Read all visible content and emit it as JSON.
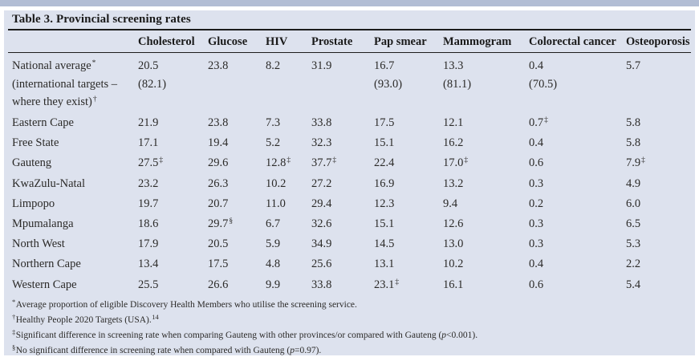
{
  "colors": {
    "top_bar": "#b2bdd4",
    "card_bg": "#dde2ee",
    "rule": "#1c1c1c",
    "text": "#2b2a28"
  },
  "table": {
    "title": "Table 3. Provincial screening rates",
    "columns": [
      "Cholesterol",
      "Glucose",
      "HIV",
      "Prostate",
      "Pap smear",
      "Mammogram",
      "Colorectal cancer",
      "Osteoporosis"
    ],
    "rows": [
      {
        "label": [
          {
            "t": "National average",
            "sup": "*"
          },
          {
            "t": "(international targets –",
            "sup": ""
          },
          {
            "t": "where they exist)",
            "sup": "†"
          }
        ],
        "cells": [
          {
            "v": "20.5",
            "sup": "",
            "v2": "(82.1)"
          },
          {
            "v": "23.8",
            "sup": "",
            "v2": ""
          },
          {
            "v": "8.2",
            "sup": "",
            "v2": ""
          },
          {
            "v": "31.9",
            "sup": "",
            "v2": ""
          },
          {
            "v": "16.7",
            "sup": "",
            "v2": "(93.0)"
          },
          {
            "v": "13.3",
            "sup": "",
            "v2": "(81.1)"
          },
          {
            "v": "0.4",
            "sup": "",
            "v2": "(70.5)"
          },
          {
            "v": "5.7",
            "sup": "",
            "v2": ""
          }
        ]
      },
      {
        "label": [
          {
            "t": "Eastern Cape",
            "sup": ""
          }
        ],
        "cells": [
          {
            "v": "21.9",
            "sup": "",
            "v2": ""
          },
          {
            "v": "23.8",
            "sup": "",
            "v2": ""
          },
          {
            "v": "7.3",
            "sup": "",
            "v2": ""
          },
          {
            "v": "33.8",
            "sup": "",
            "v2": ""
          },
          {
            "v": "17.5",
            "sup": "",
            "v2": ""
          },
          {
            "v": "12.1",
            "sup": "",
            "v2": ""
          },
          {
            "v": "0.7",
            "sup": "‡",
            "v2": ""
          },
          {
            "v": "5.8",
            "sup": "",
            "v2": ""
          }
        ]
      },
      {
        "label": [
          {
            "t": "Free State",
            "sup": ""
          }
        ],
        "cells": [
          {
            "v": "17.1",
            "sup": "",
            "v2": ""
          },
          {
            "v": "19.4",
            "sup": "",
            "v2": ""
          },
          {
            "v": "5.2",
            "sup": "",
            "v2": ""
          },
          {
            "v": "32.3",
            "sup": "",
            "v2": ""
          },
          {
            "v": "15.1",
            "sup": "",
            "v2": ""
          },
          {
            "v": "16.2",
            "sup": "",
            "v2": ""
          },
          {
            "v": "0.4",
            "sup": "",
            "v2": ""
          },
          {
            "v": "5.8",
            "sup": "",
            "v2": ""
          }
        ]
      },
      {
        "label": [
          {
            "t": "Gauteng",
            "sup": ""
          }
        ],
        "cells": [
          {
            "v": "27.5",
            "sup": "‡",
            "v2": ""
          },
          {
            "v": "29.6",
            "sup": "",
            "v2": ""
          },
          {
            "v": "12.8",
            "sup": "‡",
            "v2": ""
          },
          {
            "v": "37.7",
            "sup": "‡",
            "v2": ""
          },
          {
            "v": "22.4",
            "sup": "",
            "v2": ""
          },
          {
            "v": "17.0",
            "sup": "‡",
            "v2": ""
          },
          {
            "v": "0.6",
            "sup": "",
            "v2": ""
          },
          {
            "v": "7.9",
            "sup": "‡",
            "v2": ""
          }
        ]
      },
      {
        "label": [
          {
            "t": "KwaZulu-Natal",
            "sup": ""
          }
        ],
        "cells": [
          {
            "v": "23.2",
            "sup": "",
            "v2": ""
          },
          {
            "v": "26.3",
            "sup": "",
            "v2": ""
          },
          {
            "v": "10.2",
            "sup": "",
            "v2": ""
          },
          {
            "v": "27.2",
            "sup": "",
            "v2": ""
          },
          {
            "v": "16.9",
            "sup": "",
            "v2": ""
          },
          {
            "v": "13.2",
            "sup": "",
            "v2": ""
          },
          {
            "v": "0.3",
            "sup": "",
            "v2": ""
          },
          {
            "v": "4.9",
            "sup": "",
            "v2": ""
          }
        ]
      },
      {
        "label": [
          {
            "t": "Limpopo",
            "sup": ""
          }
        ],
        "cells": [
          {
            "v": "19.7",
            "sup": "",
            "v2": ""
          },
          {
            "v": "20.7",
            "sup": "",
            "v2": ""
          },
          {
            "v": "11.0",
            "sup": "",
            "v2": ""
          },
          {
            "v": "29.4",
            "sup": "",
            "v2": ""
          },
          {
            "v": "12.3",
            "sup": "",
            "v2": ""
          },
          {
            "v": "9.4",
            "sup": "",
            "v2": ""
          },
          {
            "v": "0.2",
            "sup": "",
            "v2": ""
          },
          {
            "v": "6.0",
            "sup": "",
            "v2": ""
          }
        ]
      },
      {
        "label": [
          {
            "t": "Mpumalanga",
            "sup": ""
          }
        ],
        "cells": [
          {
            "v": "18.6",
            "sup": "",
            "v2": ""
          },
          {
            "v": "29.7",
            "sup": "§",
            "v2": ""
          },
          {
            "v": "6.7",
            "sup": "",
            "v2": ""
          },
          {
            "v": "32.6",
            "sup": "",
            "v2": ""
          },
          {
            "v": "15.1",
            "sup": "",
            "v2": ""
          },
          {
            "v": "12.6",
            "sup": "",
            "v2": ""
          },
          {
            "v": "0.3",
            "sup": "",
            "v2": ""
          },
          {
            "v": "6.5",
            "sup": "",
            "v2": ""
          }
        ]
      },
      {
        "label": [
          {
            "t": "North West",
            "sup": ""
          }
        ],
        "cells": [
          {
            "v": "17.9",
            "sup": "",
            "v2": ""
          },
          {
            "v": "20.5",
            "sup": "",
            "v2": ""
          },
          {
            "v": "5.9",
            "sup": "",
            "v2": ""
          },
          {
            "v": "34.9",
            "sup": "",
            "v2": ""
          },
          {
            "v": "14.5",
            "sup": "",
            "v2": ""
          },
          {
            "v": "13.0",
            "sup": "",
            "v2": ""
          },
          {
            "v": "0.3",
            "sup": "",
            "v2": ""
          },
          {
            "v": "5.3",
            "sup": "",
            "v2": ""
          }
        ]
      },
      {
        "label": [
          {
            "t": "Northern Cape",
            "sup": ""
          }
        ],
        "cells": [
          {
            "v": "13.4",
            "sup": "",
            "v2": ""
          },
          {
            "v": "17.5",
            "sup": "",
            "v2": ""
          },
          {
            "v": "4.8",
            "sup": "",
            "v2": ""
          },
          {
            "v": "25.6",
            "sup": "",
            "v2": ""
          },
          {
            "v": "13.1",
            "sup": "",
            "v2": ""
          },
          {
            "v": "10.2",
            "sup": "",
            "v2": ""
          },
          {
            "v": "0.4",
            "sup": "",
            "v2": ""
          },
          {
            "v": "2.2",
            "sup": "",
            "v2": ""
          }
        ]
      },
      {
        "label": [
          {
            "t": "Western Cape",
            "sup": ""
          }
        ],
        "cells": [
          {
            "v": "25.5",
            "sup": "",
            "v2": ""
          },
          {
            "v": "26.6",
            "sup": "",
            "v2": ""
          },
          {
            "v": "9.9",
            "sup": "",
            "v2": ""
          },
          {
            "v": "33.8",
            "sup": "",
            "v2": ""
          },
          {
            "v": "23.1",
            "sup": "‡",
            "v2": ""
          },
          {
            "v": "16.1",
            "sup": "",
            "v2": ""
          },
          {
            "v": "0.6",
            "sup": "",
            "v2": ""
          },
          {
            "v": "5.4",
            "sup": "",
            "v2": ""
          }
        ]
      }
    ]
  },
  "footnotes": [
    {
      "mark": "*",
      "text": "Average proportion of eligible Discovery Health Members who utilise the screening service.",
      "p": "",
      "tail": "",
      "ref": ""
    },
    {
      "mark": "†",
      "text": "Healthy People 2020 Targets (USA).",
      "p": "",
      "tail": "",
      "ref": "14"
    },
    {
      "mark": "‡",
      "text": "Significant difference in screening rate when comparing Gauteng with other provinces/or compared with Gauteng (",
      "p": "p",
      "tail": "<0.001).",
      "ref": ""
    },
    {
      "mark": "§",
      "text": "No significant difference in screening rate when compared with Gauteng (",
      "p": "p",
      "tail": "=0.97).",
      "ref": ""
    }
  ]
}
